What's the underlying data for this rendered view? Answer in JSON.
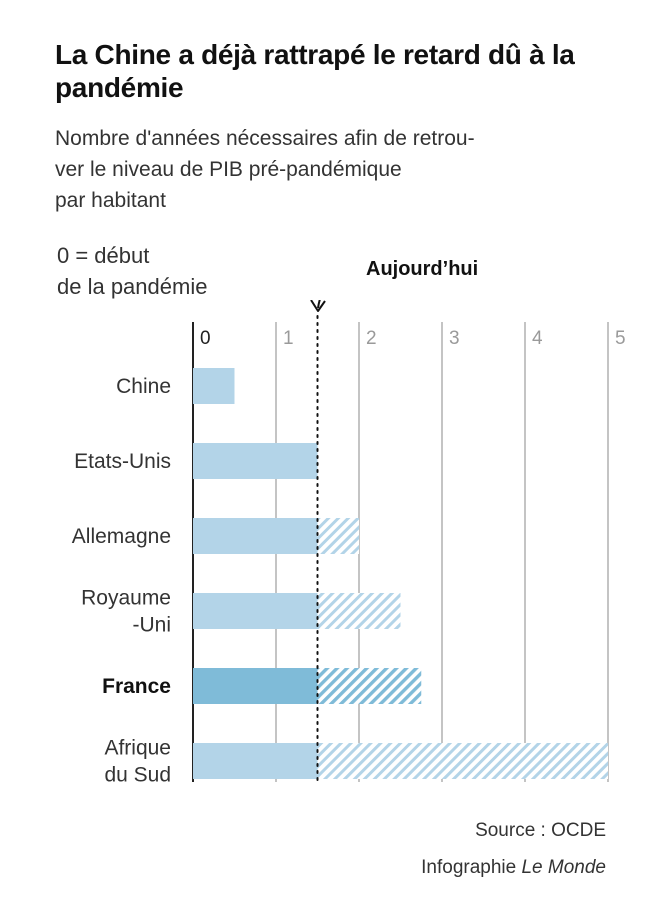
{
  "title": "La Chine a déjà rattrapé le retard dû à la pandémie",
  "subtitle": "Nombre d'années nécessaires afin de retrou-\nver le niveau de PIB pré-pandémique\npar habitant",
  "note": "0 = début\nde la pandémie",
  "today_label": "Aujourd’hui",
  "source": "Source : OCDE",
  "credit_prefix": "Infographie ",
  "credit_outlet": "Le Monde",
  "colors": {
    "bar": "#b3d4e8",
    "bar_highlight": "#7fbbd8",
    "grid": "#c4c4c4",
    "text": "#333333"
  },
  "chart_data": {
    "type": "bar",
    "orientation": "horizontal",
    "categories": [
      "Chine",
      "Etats-Unis",
      "Allemagne",
      "Royaume\n-Uni",
      "France",
      "Afrique\ndu Sud"
    ],
    "highlight": "France",
    "today": 1.5,
    "values": [
      0.5,
      1.5,
      2.0,
      2.5,
      2.75,
      5.0
    ],
    "xlim": [
      0,
      5
    ],
    "xticks": [
      "0",
      "1",
      "2",
      "3",
      "4",
      "5"
    ],
    "solid_up_to_today": true,
    "hatched_beyond_today": true,
    "grid": true
  }
}
